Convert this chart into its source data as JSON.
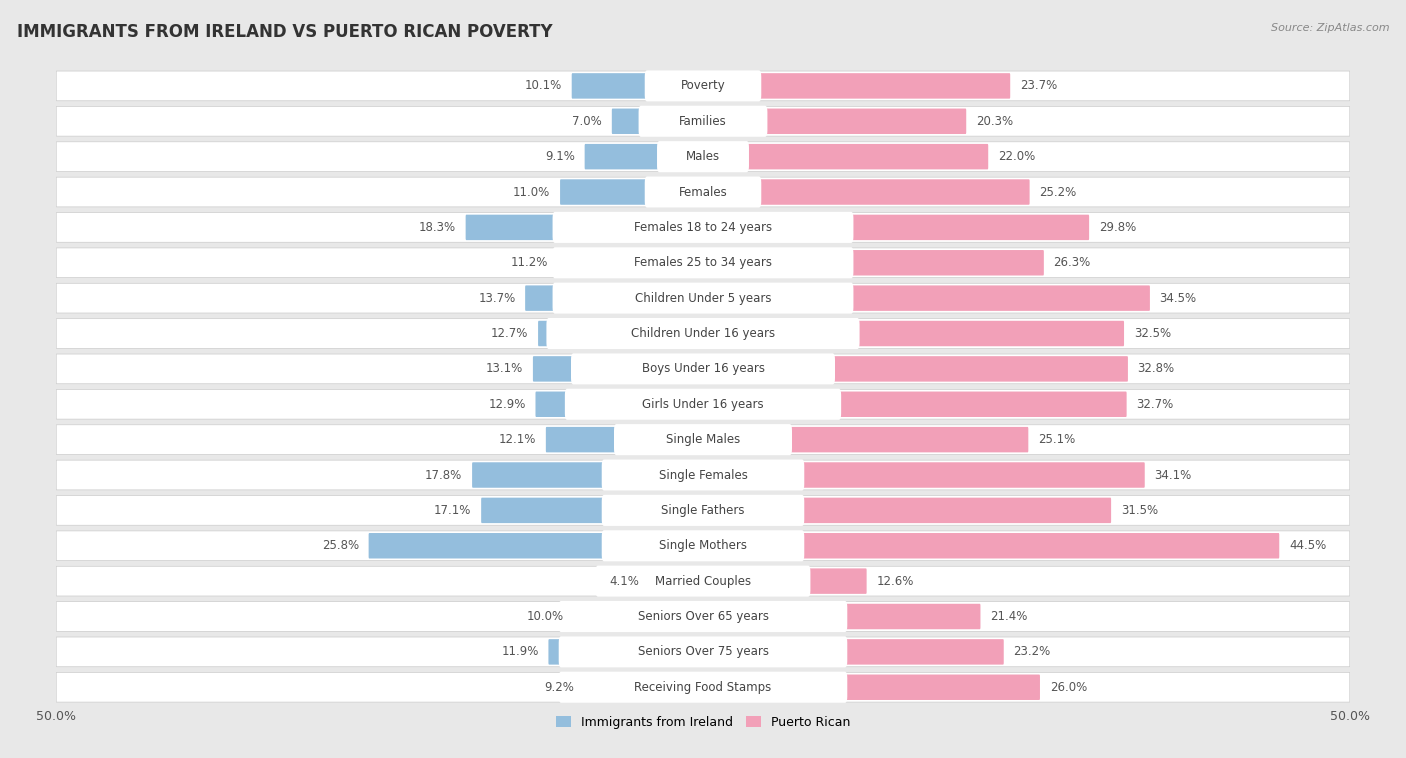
{
  "title": "IMMIGRANTS FROM IRELAND VS PUERTO RICAN POVERTY",
  "source": "Source: ZipAtlas.com",
  "categories": [
    "Poverty",
    "Families",
    "Males",
    "Females",
    "Females 18 to 24 years",
    "Females 25 to 34 years",
    "Children Under 5 years",
    "Children Under 16 years",
    "Boys Under 16 years",
    "Girls Under 16 years",
    "Single Males",
    "Single Females",
    "Single Fathers",
    "Single Mothers",
    "Married Couples",
    "Seniors Over 65 years",
    "Seniors Over 75 years",
    "Receiving Food Stamps"
  ],
  "ireland_values": [
    10.1,
    7.0,
    9.1,
    11.0,
    18.3,
    11.2,
    13.7,
    12.7,
    13.1,
    12.9,
    12.1,
    17.8,
    17.1,
    25.8,
    4.1,
    10.0,
    11.9,
    9.2
  ],
  "puerto_rican_values": [
    23.7,
    20.3,
    22.0,
    25.2,
    29.8,
    26.3,
    34.5,
    32.5,
    32.8,
    32.7,
    25.1,
    34.1,
    31.5,
    44.5,
    12.6,
    21.4,
    23.2,
    26.0
  ],
  "ireland_color": "#94bedd",
  "puerto_rican_color": "#f2a0b8",
  "label_ireland": "Immigrants from Ireland",
  "label_puerto_rican": "Puerto Rican",
  "axis_max": 50.0,
  "background_color": "#e8e8e8",
  "row_color_odd": "#f0f0f0",
  "row_color_even": "#fafafa",
  "title_fontsize": 12,
  "bar_height": 0.62,
  "bar_label_fontsize": 8.5,
  "category_fontsize": 8.5
}
